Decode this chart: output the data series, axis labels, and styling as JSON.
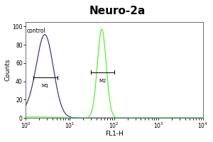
{
  "title": "Neuro-2a",
  "title_fontsize": 11,
  "title_fontweight": "bold",
  "xlabel": "FL1-H",
  "ylabel": "Counts",
  "xlabel_fontsize": 6.5,
  "ylabel_fontsize": 6.5,
  "xlim_log": [
    1.0,
    10000
  ],
  "ylim": [
    0,
    105
  ],
  "yticks": [
    0,
    20,
    40,
    60,
    80,
    100
  ],
  "control_label": "control",
  "control_color": "#23238a",
  "sample_color": "#44ee22",
  "background_color": "#ffffff",
  "plot_bg_color": "#ffffff",
  "m1_label": "M1",
  "m2_label": "M2",
  "control_peak_log": 0.44,
  "control_peak_y": 88,
  "control_std": 0.19,
  "sample_peak_log": 1.72,
  "sample_peak_y": 97,
  "sample_std": 0.1,
  "border_color": "#888888"
}
